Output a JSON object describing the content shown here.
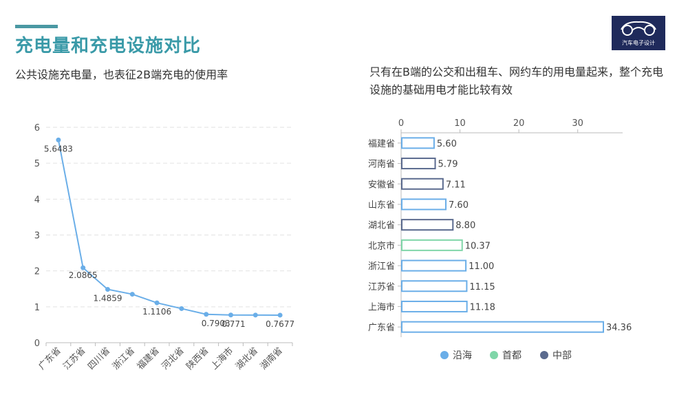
{
  "header": {
    "title": "充电量和充电设施对比",
    "logo_text": "汽车电子设计"
  },
  "left_panel": {
    "subtitle": "公共设施充电量，也表征2B端充电的使用率"
  },
  "right_panel": {
    "subtitle": "只有在B端的公交和出租车、网约车的用电量起来，整个充电设施的基础用电才能比较有效"
  },
  "colors": {
    "line": "#6aaee8",
    "coastal": "#6aaee8",
    "capital": "#7fd6a8",
    "central": "#5a6a8e"
  },
  "chart_data": [
    {
      "type": "line",
      "categories": [
        "广东省",
        "江苏省",
        "四川省",
        "浙江省",
        "福建省",
        "河北省",
        "陕西省",
        "上海市",
        "湖北省",
        "湖南省"
      ],
      "values": [
        5.6483,
        2.0865,
        1.4859,
        1.35,
        1.1106,
        0.95,
        0.7903,
        0.771,
        0.77,
        0.7677
      ],
      "data_labels": [
        "5.6483",
        "2.0865",
        "1.4859",
        "",
        "1.1106",
        "",
        "0.7903",
        "0.771",
        "",
        "0.7677"
      ],
      "y_ticks": [
        "0",
        "1",
        "2",
        "3",
        "4",
        "5",
        "6"
      ],
      "ylim": [
        0,
        6
      ],
      "grid": true
    },
    {
      "type": "bar",
      "orientation": "horizontal",
      "categories": [
        "福建省",
        "河南省",
        "安徽省",
        "山东省",
        "湖北省",
        "北京市",
        "浙江省",
        "江苏省",
        "上海市",
        "广东省"
      ],
      "values": [
        5.6,
        5.79,
        7.11,
        7.6,
        8.8,
        10.37,
        11.0,
        11.15,
        11.18,
        34.36
      ],
      "value_labels": [
        "5.60",
        "5.79",
        "7.11",
        "7.60",
        "8.80",
        "10.37",
        "11.00",
        "11.15",
        "11.18",
        "34.36"
      ],
      "groups": [
        "沿海",
        "中部",
        "中部",
        "沿海",
        "中部",
        "首都",
        "沿海",
        "沿海",
        "沿海",
        "沿海"
      ],
      "x_ticks": [
        "0",
        "10",
        "20",
        "30"
      ],
      "xlim": [
        0,
        38
      ],
      "legend": [
        {
          "name": "沿海",
          "color": "#6aaee8"
        },
        {
          "name": "首都",
          "color": "#7fd6a8"
        },
        {
          "name": "中部",
          "color": "#5a6a8e"
        }
      ],
      "legend_position": "bottom"
    }
  ]
}
